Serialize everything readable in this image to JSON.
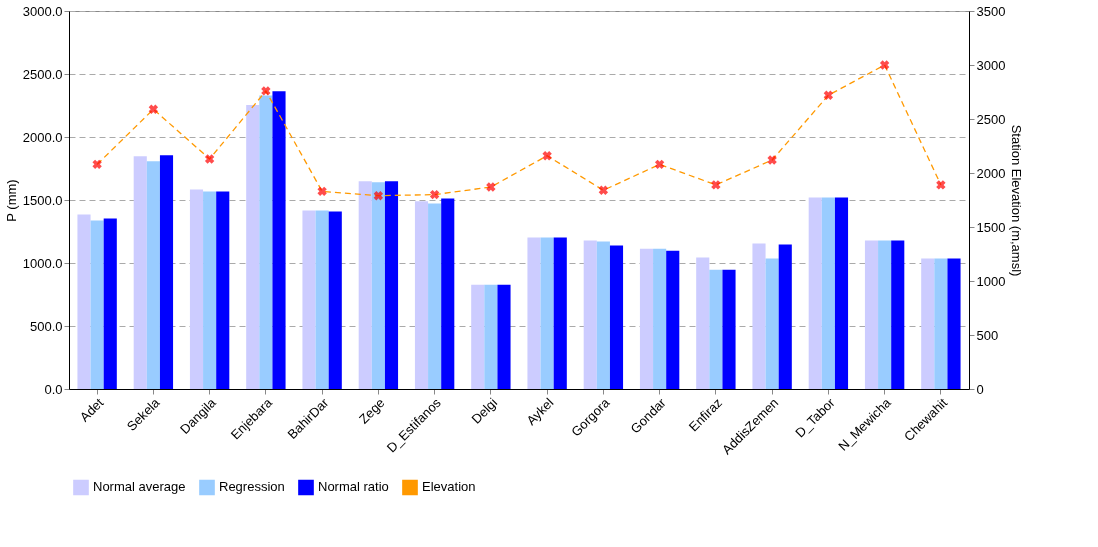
{
  "chart_data": {
    "type": "bar",
    "ylabel": "P (mm)",
    "y2label": "Station Elevation (m,amsl)",
    "categories": [
      "Adet",
      "Sekela",
      "Dangila",
      "Enjebara",
      "BahirDar",
      "Zege",
      "D_Estifanos",
      "Delgi",
      "Aykel",
      "Gorgora",
      "Gondar",
      "Enfiraz",
      "AddisZemen",
      "D_Tabor",
      "N_Mewicha",
      "Chewahit"
    ],
    "series": [
      {
        "name": "Normal average",
        "color": "#ccccff",
        "values": [
          1385,
          1847,
          1584,
          2253,
          1417,
          1648,
          1491,
          828,
          1202,
          1178,
          1114,
          1043,
          1154,
          1520,
          1178,
          1035
        ]
      },
      {
        "name": "Regression",
        "color": "#99ccff",
        "values": [
          1337,
          1807,
          1568,
          2330,
          1417,
          1640,
          1473,
          828,
          1202,
          1170,
          1114,
          947,
          1035,
          1520,
          1178,
          1035
        ]
      },
      {
        "name": "Normal ratio",
        "color": "#0000ff",
        "values": [
          1353,
          1855,
          1568,
          2364,
          1409,
          1648,
          1512,
          828,
          1202,
          1138,
          1098,
          947,
          1146,
          1520,
          1178,
          1035
        ]
      },
      {
        "name": "Elevation",
        "type": "line",
        "axis": "y2",
        "color": "#ff9900",
        "marker": "cross",
        "line_style": "dashed",
        "values": [
          2080,
          2590,
          2130,
          2760,
          1830,
          1790,
          1800,
          1870,
          2160,
          1840,
          2080,
          1890,
          2120,
          2720,
          3000,
          1890
        ]
      }
    ],
    "ylim": [
      0,
      3000
    ],
    "yticks": [
      {
        "value": 0,
        "label": "0.0"
      },
      {
        "value": 500,
        "label": "500.0"
      },
      {
        "value": 1000,
        "label": "1000.0"
      },
      {
        "value": 1500,
        "label": "1500.0"
      },
      {
        "value": 2000,
        "label": "2000.0"
      },
      {
        "value": 2500,
        "label": "2500.0"
      },
      {
        "value": 3000,
        "label": "3000.0"
      }
    ],
    "y2lim": [
      0,
      3500
    ],
    "y2ticks": [
      0,
      500,
      1000,
      1500,
      2000,
      2500,
      3000,
      3500
    ],
    "grid": "y",
    "legend": "bottom"
  }
}
